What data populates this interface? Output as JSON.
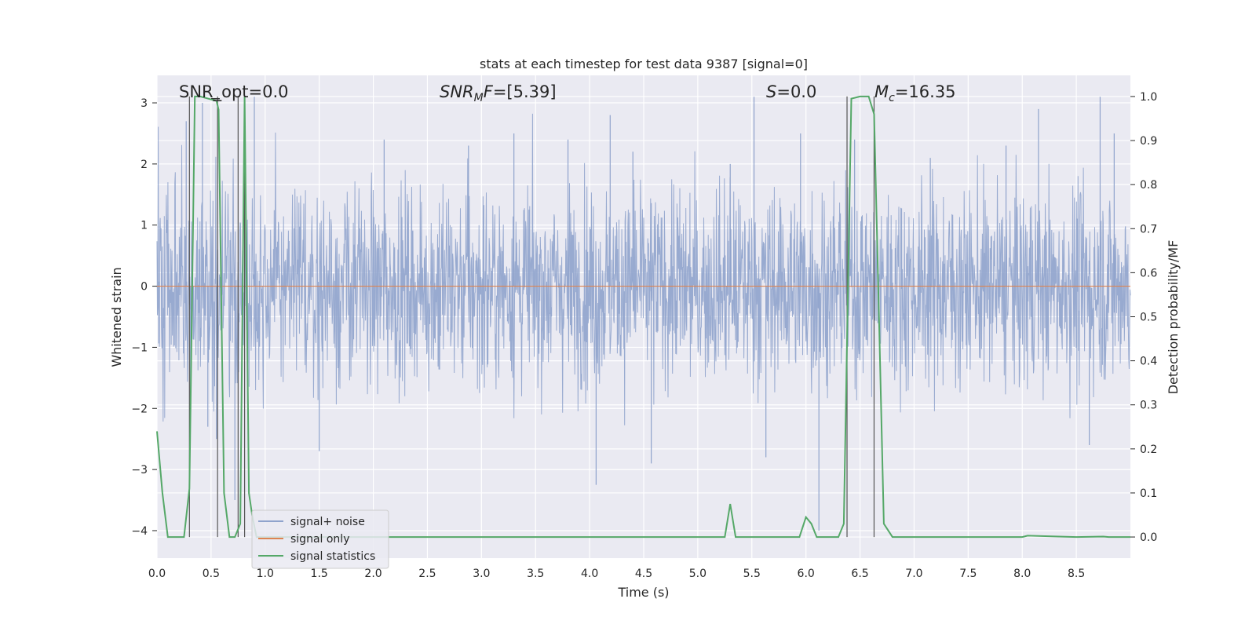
{
  "chart_data": {
    "type": "line",
    "title": "stats at each timestep for test data 9387 [signal=0]",
    "xlabel": "Time (s)",
    "ylabel": "Whitened strain",
    "y2label": "Detection probability/MF",
    "xlim": [
      0.0,
      9.0
    ],
    "ylim": [
      -4.45,
      3.45
    ],
    "y2lim": [
      -0.048,
      1.048
    ],
    "xticks": [
      "0.0",
      "0.5",
      "1.0",
      "1.5",
      "2.0",
      "2.5",
      "3.0",
      "3.5",
      "4.0",
      "4.5",
      "5.0",
      "5.5",
      "6.0",
      "6.5",
      "7.0",
      "7.5",
      "8.0",
      "8.5"
    ],
    "yticks": [
      "-4",
      "-3",
      "-2",
      "-1",
      "0",
      "1",
      "2",
      "3"
    ],
    "y2ticks": [
      "0.0",
      "0.1",
      "0.2",
      "0.3",
      "0.4",
      "0.5",
      "0.6",
      "0.7",
      "0.8",
      "0.9",
      "1.0"
    ],
    "grid": true,
    "legend_position": "lower-left",
    "annotations": {
      "snr_opt": "SNR_opt=0.0",
      "snr_mf": "=[5.39]",
      "s_val": "=0.0",
      "mc_val": "=16.35"
    },
    "series": [
      {
        "name": "signal+ noise",
        "axis": "left",
        "color": "#8fa3cc",
        "description": "dense whitened strain noise, amplitude mostly within ±2, peaks to about ±3",
        "envelope": {
          "typical": 1.7,
          "max": 3.1,
          "min": -3.3
        },
        "spikes": [
          {
            "x": 0.27,
            "y": 2.7
          },
          {
            "x": 0.31,
            "y": -2.1
          },
          {
            "x": 0.42,
            "y": 3.0
          },
          {
            "x": 0.47,
            "y": -2.3
          },
          {
            "x": 0.55,
            "y": -2.5
          },
          {
            "x": 0.72,
            "y": -3.5
          },
          {
            "x": 0.9,
            "y": 3.1
          },
          {
            "x": 1.5,
            "y": -2.7
          },
          {
            "x": 2.1,
            "y": 2.4
          },
          {
            "x": 2.88,
            "y": 2.3
          },
          {
            "x": 3.3,
            "y": 2.5
          },
          {
            "x": 3.8,
            "y": 2.4
          },
          {
            "x": 4.06,
            "y": -3.25
          },
          {
            "x": 4.19,
            "y": 2.8
          },
          {
            "x": 4.4,
            "y": 2.2
          },
          {
            "x": 4.57,
            "y": -2.9
          },
          {
            "x": 5.3,
            "y": 2.0
          },
          {
            "x": 5.52,
            "y": 3.1
          },
          {
            "x": 5.63,
            "y": -2.8
          },
          {
            "x": 5.95,
            "y": 2.5
          },
          {
            "x": 6.12,
            "y": -4.0
          },
          {
            "x": 6.45,
            "y": 2.4
          },
          {
            "x": 7.15,
            "y": 2.1
          },
          {
            "x": 7.85,
            "y": 2.3
          },
          {
            "x": 8.15,
            "y": 2.9
          },
          {
            "x": 8.62,
            "y": -2.6
          },
          {
            "x": 8.72,
            "y": 3.1
          },
          {
            "x": 8.85,
            "y": 2.5
          }
        ]
      },
      {
        "name": "signal only",
        "axis": "left",
        "color": "#dd8452",
        "x": [
          0.0,
          9.0
        ],
        "y": [
          0.0,
          0.0
        ]
      },
      {
        "name": "signal statistics",
        "axis": "right",
        "color": "#55a868",
        "x": [
          0.0,
          0.05,
          0.1,
          0.25,
          0.3,
          0.35,
          0.4,
          0.55,
          0.57,
          0.62,
          0.67,
          0.72,
          0.77,
          0.81,
          0.85,
          0.88,
          0.92,
          5.25,
          5.3,
          5.35,
          5.94,
          6.0,
          6.05,
          6.1,
          6.2,
          6.3,
          6.35,
          6.42,
          6.5,
          6.58,
          6.63,
          6.68,
          6.72,
          6.8,
          7.0,
          7.5,
          8.0,
          8.05,
          8.5,
          8.75,
          8.8,
          9.0
        ],
        "y": [
          0.24,
          0.1,
          0.0,
          0.0,
          0.11,
          1.0,
          1.0,
          0.99,
          0.97,
          0.1,
          0.0,
          0.0,
          0.03,
          1.0,
          0.1,
          0.05,
          0.0,
          0.0,
          0.075,
          0.0,
          0.0,
          0.045,
          0.03,
          0.0,
          0.0,
          0.0,
          0.03,
          0.995,
          1.0,
          1.0,
          0.96,
          0.45,
          0.03,
          0.0,
          0.0,
          0.0,
          0.0,
          0.003,
          0.0,
          0.001,
          0.0,
          0.0
        ]
      }
    ],
    "vlines": [
      0.3,
      0.56,
      0.75,
      0.81,
      6.38,
      6.63
    ],
    "hline_segment": {
      "x": [
        0.5,
        0.58
      ],
      "y2": 0.995
    }
  }
}
